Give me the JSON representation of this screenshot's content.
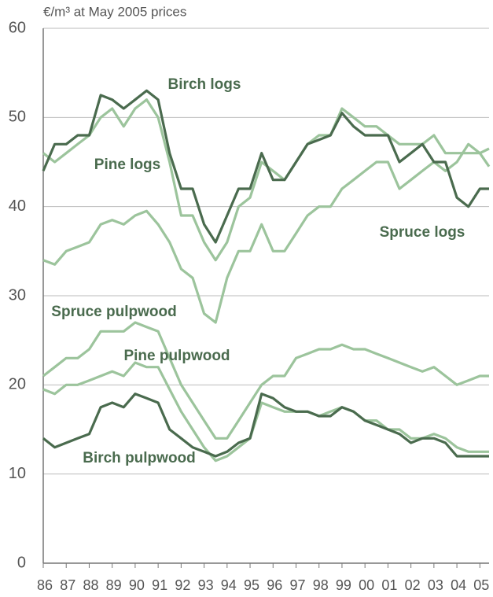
{
  "chart_data": {
    "type": "line",
    "ylabel": "€/m³ at May 2005 prices",
    "x": [
      1986,
      1986.5,
      1987,
      1987.5,
      1988,
      1988.5,
      1989,
      1989.5,
      1990,
      1990.5,
      1991,
      1991.5,
      1992,
      1992.5,
      1993,
      1993.5,
      1994,
      1994.5,
      1995,
      1995.5,
      1996,
      1996.5,
      1997,
      1997.5,
      1998,
      1998.5,
      1999,
      1999.5,
      2000,
      2000.5,
      2001,
      2001.5,
      2002,
      2002.5,
      2003,
      2003.5,
      2004,
      2004.5,
      2005,
      2005.4
    ],
    "series": [
      {
        "name": "Birch logs",
        "color": "#4a6b4e",
        "values": [
          44,
          47,
          47,
          48,
          48,
          52.5,
          52,
          51,
          52,
          53,
          52,
          46,
          42,
          42,
          38,
          36,
          39,
          42,
          42,
          46,
          43,
          43,
          45,
          47,
          47.5,
          48,
          50.5,
          49,
          48,
          48,
          48,
          45,
          46,
          47,
          45,
          45,
          41,
          40,
          42,
          42
        ]
      },
      {
        "name": "Pine logs",
        "color": "#9cc49c",
        "values": [
          46,
          45,
          46,
          47,
          48,
          50,
          51,
          49,
          51,
          52,
          50,
          45,
          39,
          39,
          36,
          34,
          36,
          40,
          41,
          45,
          44,
          43,
          45,
          47,
          48,
          48,
          51,
          50,
          49,
          49,
          48,
          47,
          47,
          47,
          48,
          46,
          46,
          46,
          46,
          46.5
        ]
      },
      {
        "name": "Spruce logs",
        "color": "#9cc49c",
        "values": [
          34,
          33.5,
          35,
          35.5,
          36,
          38,
          38.5,
          38,
          39,
          39.5,
          38,
          36,
          33,
          32,
          28,
          27,
          32,
          35,
          35,
          38,
          35,
          35,
          37,
          39,
          40,
          40,
          42,
          43,
          44,
          45,
          45,
          42,
          43,
          44,
          45,
          44,
          45,
          47,
          46,
          44.5
        ]
      },
      {
        "name": "Spruce pulpwood",
        "color": "#9cc49c",
        "values": [
          21,
          22,
          23,
          23,
          24,
          26,
          26,
          26,
          27,
          26.5,
          26,
          23,
          20,
          18,
          16,
          14,
          14,
          16,
          18,
          20,
          21,
          21,
          23,
          23.5,
          24,
          24,
          24.5,
          24,
          24,
          23.5,
          23,
          22.5,
          22,
          21.5,
          22,
          21,
          20,
          20.5,
          21,
          21
        ]
      },
      {
        "name": "Pine pulpwood",
        "color": "#9cc49c",
        "values": [
          19.5,
          19,
          20,
          20,
          20.5,
          21,
          21.5,
          21,
          22.5,
          22,
          22,
          19.5,
          17,
          15,
          13,
          11.5,
          12,
          13,
          14,
          18,
          17.5,
          17,
          17,
          17,
          16.5,
          17,
          17.5,
          17,
          16,
          16,
          15,
          15,
          14,
          14,
          14.5,
          14,
          13,
          12.5,
          12.5,
          12.5
        ]
      },
      {
        "name": "Birch pulpwood",
        "color": "#4a6b4e",
        "values": [
          14,
          13,
          13.5,
          14,
          14.5,
          17.5,
          18,
          17.5,
          19,
          18.5,
          18,
          15,
          14,
          13,
          12.5,
          12,
          12.5,
          13.5,
          14,
          19,
          18.5,
          17.5,
          17,
          17,
          16.5,
          16.5,
          17.5,
          17,
          16,
          15.5,
          15,
          14.5,
          13.5,
          14,
          14,
          13.5,
          12,
          12,
          12,
          12
        ]
      }
    ],
    "xlim": [
      1986,
      2005.4
    ],
    "xticks": [
      {
        "value": 1986,
        "label": "86"
      },
      {
        "value": 1987,
        "label": "87"
      },
      {
        "value": 1988,
        "label": "88"
      },
      {
        "value": 1989,
        "label": "89"
      },
      {
        "value": 1990,
        "label": "90"
      },
      {
        "value": 1991,
        "label": "91"
      },
      {
        "value": 1992,
        "label": "92"
      },
      {
        "value": 1993,
        "label": "93"
      },
      {
        "value": 1994,
        "label": "94"
      },
      {
        "value": 1995,
        "label": "95"
      },
      {
        "value": 1996,
        "label": "96"
      },
      {
        "value": 1997,
        "label": "97"
      },
      {
        "value": 1998,
        "label": "98"
      },
      {
        "value": 1999,
        "label": "99"
      },
      {
        "value": 2000,
        "label": "00"
      },
      {
        "value": 2001,
        "label": "01"
      },
      {
        "value": 2002,
        "label": "02"
      },
      {
        "value": 2003,
        "label": "03"
      },
      {
        "value": 2004,
        "label": "04"
      },
      {
        "value": 2005,
        "label": "05"
      }
    ],
    "ylim": [
      0,
      60
    ],
    "yticks": [
      0,
      10,
      20,
      30,
      40,
      50,
      60
    ],
    "grid": true
  }
}
